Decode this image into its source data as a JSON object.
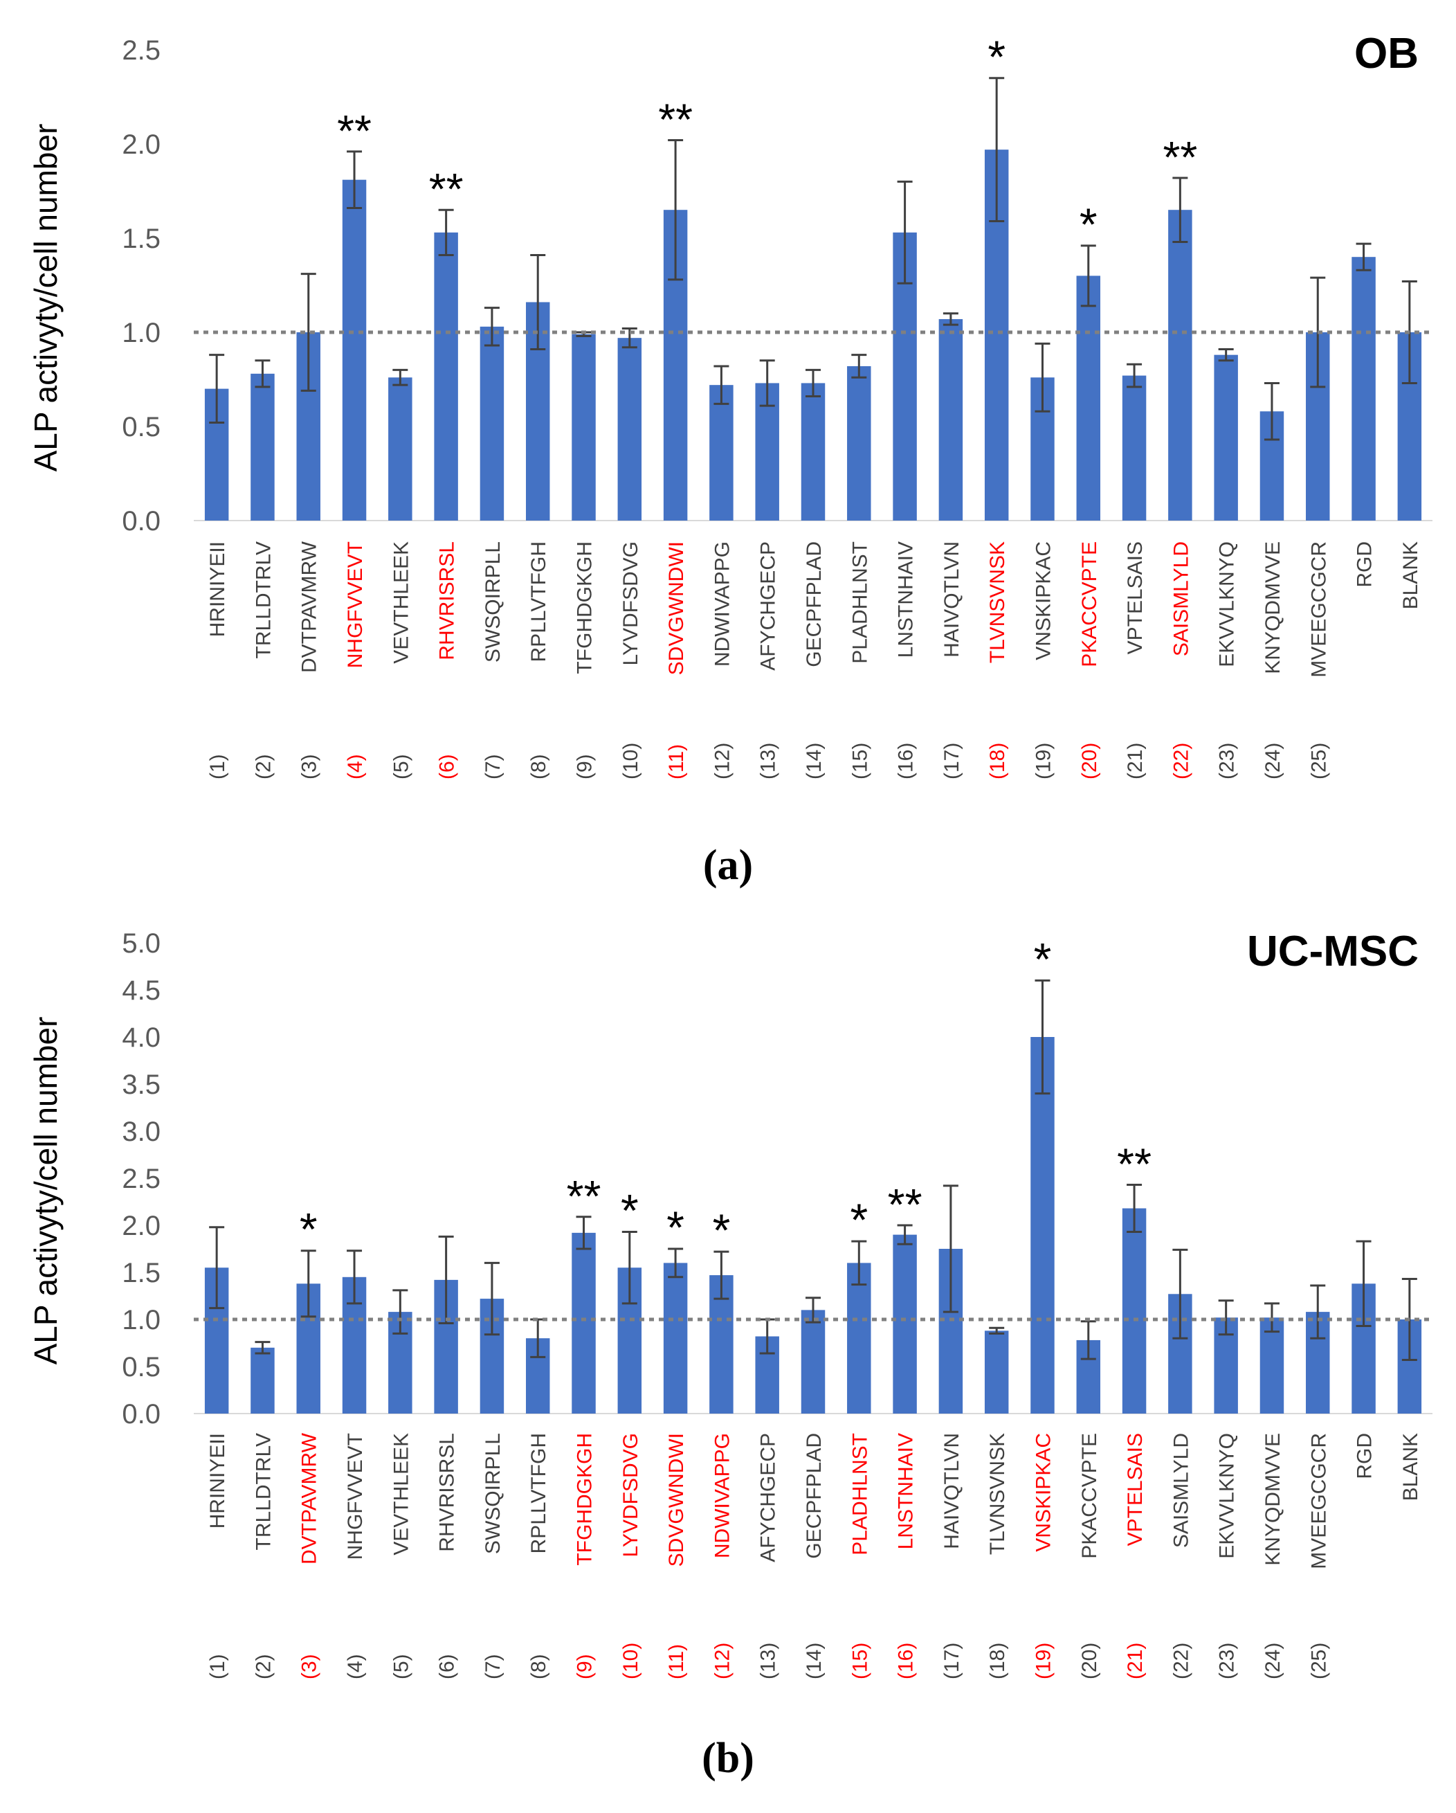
{
  "colors": {
    "bar": "#4472C4",
    "highlight": "#FF0000",
    "normal_label": "#404040",
    "axis_text": "#595959",
    "reference_line": "#808080"
  },
  "chart_data": [
    {
      "type": "bar",
      "title": "OB",
      "ylabel": "ALP activyty/cell number",
      "ylim": [
        0,
        2.5
      ],
      "yticks": [
        "0.0",
        "0.5",
        "1.0",
        "1.5",
        "2.0",
        "2.5"
      ],
      "reference_line": 1.0,
      "caption": "(a)",
      "categories": [
        {
          "name": "HRINIYEII",
          "num": "(1)",
          "value": 0.7,
          "error": 0.18,
          "sig": "",
          "highlight": false
        },
        {
          "name": "TRLLDTRLV",
          "num": "(2)",
          "value": 0.78,
          "error": 0.07,
          "sig": "",
          "highlight": false
        },
        {
          "name": "DVTPAVMRW",
          "num": "(3)",
          "value": 1.0,
          "error": 0.31,
          "sig": "",
          "highlight": false
        },
        {
          "name": "NHGFVVEVT",
          "num": "(4)",
          "value": 1.81,
          "error": 0.15,
          "sig": "**",
          "highlight": true
        },
        {
          "name": "VEVTHLEEK",
          "num": "(5)",
          "value": 0.76,
          "error": 0.04,
          "sig": "",
          "highlight": false
        },
        {
          "name": "RHVRISRSL",
          "num": "(6)",
          "value": 1.53,
          "error": 0.12,
          "sig": "**",
          "highlight": true
        },
        {
          "name": "SWSQIRPLL",
          "num": "(7)",
          "value": 1.03,
          "error": 0.1,
          "sig": "",
          "highlight": false
        },
        {
          "name": "RPLLVTFGH",
          "num": "(8)",
          "value": 1.16,
          "error": 0.25,
          "sig": "",
          "highlight": false
        },
        {
          "name": "TFGHDGKGH",
          "num": "(9)",
          "value": 0.99,
          "error": 0.01,
          "sig": "",
          "highlight": false
        },
        {
          "name": "LYVDFSDVG",
          "num": "(10)",
          "value": 0.97,
          "error": 0.05,
          "sig": "",
          "highlight": false
        },
        {
          "name": "SDVGWNDWI",
          "num": "(11)",
          "value": 1.65,
          "error": 0.37,
          "sig": "**",
          "highlight": true
        },
        {
          "name": "NDWIVAPPG",
          "num": "(12)",
          "value": 0.72,
          "error": 0.1,
          "sig": "",
          "highlight": false
        },
        {
          "name": "AFYCHGECP",
          "num": "(13)",
          "value": 0.73,
          "error": 0.12,
          "sig": "",
          "highlight": false
        },
        {
          "name": "GECPFPLAD",
          "num": "(14)",
          "value": 0.73,
          "error": 0.07,
          "sig": "",
          "highlight": false
        },
        {
          "name": "PLADHLNST",
          "num": "(15)",
          "value": 0.82,
          "error": 0.06,
          "sig": "",
          "highlight": false
        },
        {
          "name": "LNSTNHAIV",
          "num": "(16)",
          "value": 1.53,
          "error": 0.27,
          "sig": "",
          "highlight": false
        },
        {
          "name": "HAIVQTLVN",
          "num": "(17)",
          "value": 1.07,
          "error": 0.03,
          "sig": "",
          "highlight": false
        },
        {
          "name": "TLVNSVNSK",
          "num": "(18)",
          "value": 1.97,
          "error": 0.38,
          "sig": "*",
          "highlight": true
        },
        {
          "name": "VNSKIPKAC",
          "num": "(19)",
          "value": 0.76,
          "error": 0.18,
          "sig": "",
          "highlight": false
        },
        {
          "name": "PKACCVPTE",
          "num": "(20)",
          "value": 1.3,
          "error": 0.16,
          "sig": "*",
          "highlight": true
        },
        {
          "name": "VPTELSAIS",
          "num": "(21)",
          "value": 0.77,
          "error": 0.06,
          "sig": "",
          "highlight": false
        },
        {
          "name": "SAISMLYLD",
          "num": "(22)",
          "value": 1.65,
          "error": 0.17,
          "sig": "**",
          "highlight": true
        },
        {
          "name": "EKVVLKNYQ",
          "num": "(23)",
          "value": 0.88,
          "error": 0.03,
          "sig": "",
          "highlight": false
        },
        {
          "name": "KNYQDMVVE",
          "num": "(24)",
          "value": 0.58,
          "error": 0.15,
          "sig": "",
          "highlight": false
        },
        {
          "name": "MVEEGCGCR",
          "num": "(25)",
          "value": 1.0,
          "error": 0.29,
          "sig": "",
          "highlight": false
        },
        {
          "name": "RGD",
          "num": "",
          "value": 1.4,
          "error": 0.07,
          "sig": "",
          "highlight": false
        },
        {
          "name": "BLANK",
          "num": "",
          "value": 1.0,
          "error": 0.27,
          "sig": "",
          "highlight": false
        }
      ]
    },
    {
      "type": "bar",
      "title": "UC-MSC",
      "ylabel": "ALP activyty/cell number",
      "ylim": [
        0,
        5.0
      ],
      "yticks": [
        "0.0",
        "0.5",
        "1.0",
        "1.5",
        "2.0",
        "2.5",
        "3.0",
        "3.5",
        "4.0",
        "4.5",
        "5.0"
      ],
      "reference_line": 1.0,
      "caption": "(b)",
      "categories": [
        {
          "name": "HRINIYEII",
          "num": "(1)",
          "value": 1.55,
          "error": 0.43,
          "sig": "",
          "highlight": false
        },
        {
          "name": "TRLLDTRLV",
          "num": "(2)",
          "value": 0.7,
          "error": 0.06,
          "sig": "",
          "highlight": false
        },
        {
          "name": "DVTPAVMRW",
          "num": "(3)",
          "value": 1.38,
          "error": 0.35,
          "sig": "*",
          "highlight": true
        },
        {
          "name": "NHGFVVEVT",
          "num": "(4)",
          "value": 1.45,
          "error": 0.28,
          "sig": "",
          "highlight": false
        },
        {
          "name": "VEVTHLEEK",
          "num": "(5)",
          "value": 1.08,
          "error": 0.23,
          "sig": "",
          "highlight": false
        },
        {
          "name": "RHVRISRSL",
          "num": "(6)",
          "value": 1.42,
          "error": 0.46,
          "sig": "",
          "highlight": false
        },
        {
          "name": "SWSQIRPLL",
          "num": "(7)",
          "value": 1.22,
          "error": 0.38,
          "sig": "",
          "highlight": false
        },
        {
          "name": "RPLLVTFGH",
          "num": "(8)",
          "value": 0.8,
          "error": 0.2,
          "sig": "",
          "highlight": false
        },
        {
          "name": "TFGHDGKGH",
          "num": "(9)",
          "value": 1.92,
          "error": 0.17,
          "sig": "**",
          "highlight": true
        },
        {
          "name": "LYVDFSDVG",
          "num": "(10)",
          "value": 1.55,
          "error": 0.38,
          "sig": "*",
          "highlight": true
        },
        {
          "name": "SDVGWNDWI",
          "num": "(11)",
          "value": 1.6,
          "error": 0.15,
          "sig": "*",
          "highlight": true
        },
        {
          "name": "NDWIVAPPG",
          "num": "(12)",
          "value": 1.47,
          "error": 0.25,
          "sig": "*",
          "highlight": true
        },
        {
          "name": "AFYCHGECP",
          "num": "(13)",
          "value": 0.82,
          "error": 0.18,
          "sig": "",
          "highlight": false
        },
        {
          "name": "GECPFPLAD",
          "num": "(14)",
          "value": 1.1,
          "error": 0.13,
          "sig": "",
          "highlight": false
        },
        {
          "name": "PLADHLNST",
          "num": "(15)",
          "value": 1.6,
          "error": 0.23,
          "sig": "*",
          "highlight": true
        },
        {
          "name": "LNSTNHAIV",
          "num": "(16)",
          "value": 1.9,
          "error": 0.1,
          "sig": "**",
          "highlight": true
        },
        {
          "name": "HAIVQTLVN",
          "num": "(17)",
          "value": 1.75,
          "error": 0.67,
          "sig": "",
          "highlight": false
        },
        {
          "name": "TLVNSVNSK",
          "num": "(18)",
          "value": 0.88,
          "error": 0.03,
          "sig": "",
          "highlight": false
        },
        {
          "name": "VNSKIPKAC",
          "num": "(19)",
          "value": 4.0,
          "error": 0.6,
          "sig": "*",
          "highlight": true
        },
        {
          "name": "PKACCVPTE",
          "num": "(20)",
          "value": 0.78,
          "error": 0.2,
          "sig": "",
          "highlight": false
        },
        {
          "name": "VPTELSAIS",
          "num": "(21)",
          "value": 2.18,
          "error": 0.25,
          "sig": "**",
          "highlight": true
        },
        {
          "name": "SAISMLYLD",
          "num": "(22)",
          "value": 1.27,
          "error": 0.47,
          "sig": "",
          "highlight": false
        },
        {
          "name": "EKVVLKNYQ",
          "num": "(23)",
          "value": 1.02,
          "error": 0.18,
          "sig": "",
          "highlight": false
        },
        {
          "name": "KNYQDMVVE",
          "num": "(24)",
          "value": 1.02,
          "error": 0.15,
          "sig": "",
          "highlight": false
        },
        {
          "name": "MVEEGCGCR",
          "num": "(25)",
          "value": 1.08,
          "error": 0.28,
          "sig": "",
          "highlight": false
        },
        {
          "name": "RGD",
          "num": "",
          "value": 1.38,
          "error": 0.45,
          "sig": "",
          "highlight": false
        },
        {
          "name": "BLANK",
          "num": "",
          "value": 1.0,
          "error": 0.43,
          "sig": "",
          "highlight": false
        }
      ]
    }
  ]
}
